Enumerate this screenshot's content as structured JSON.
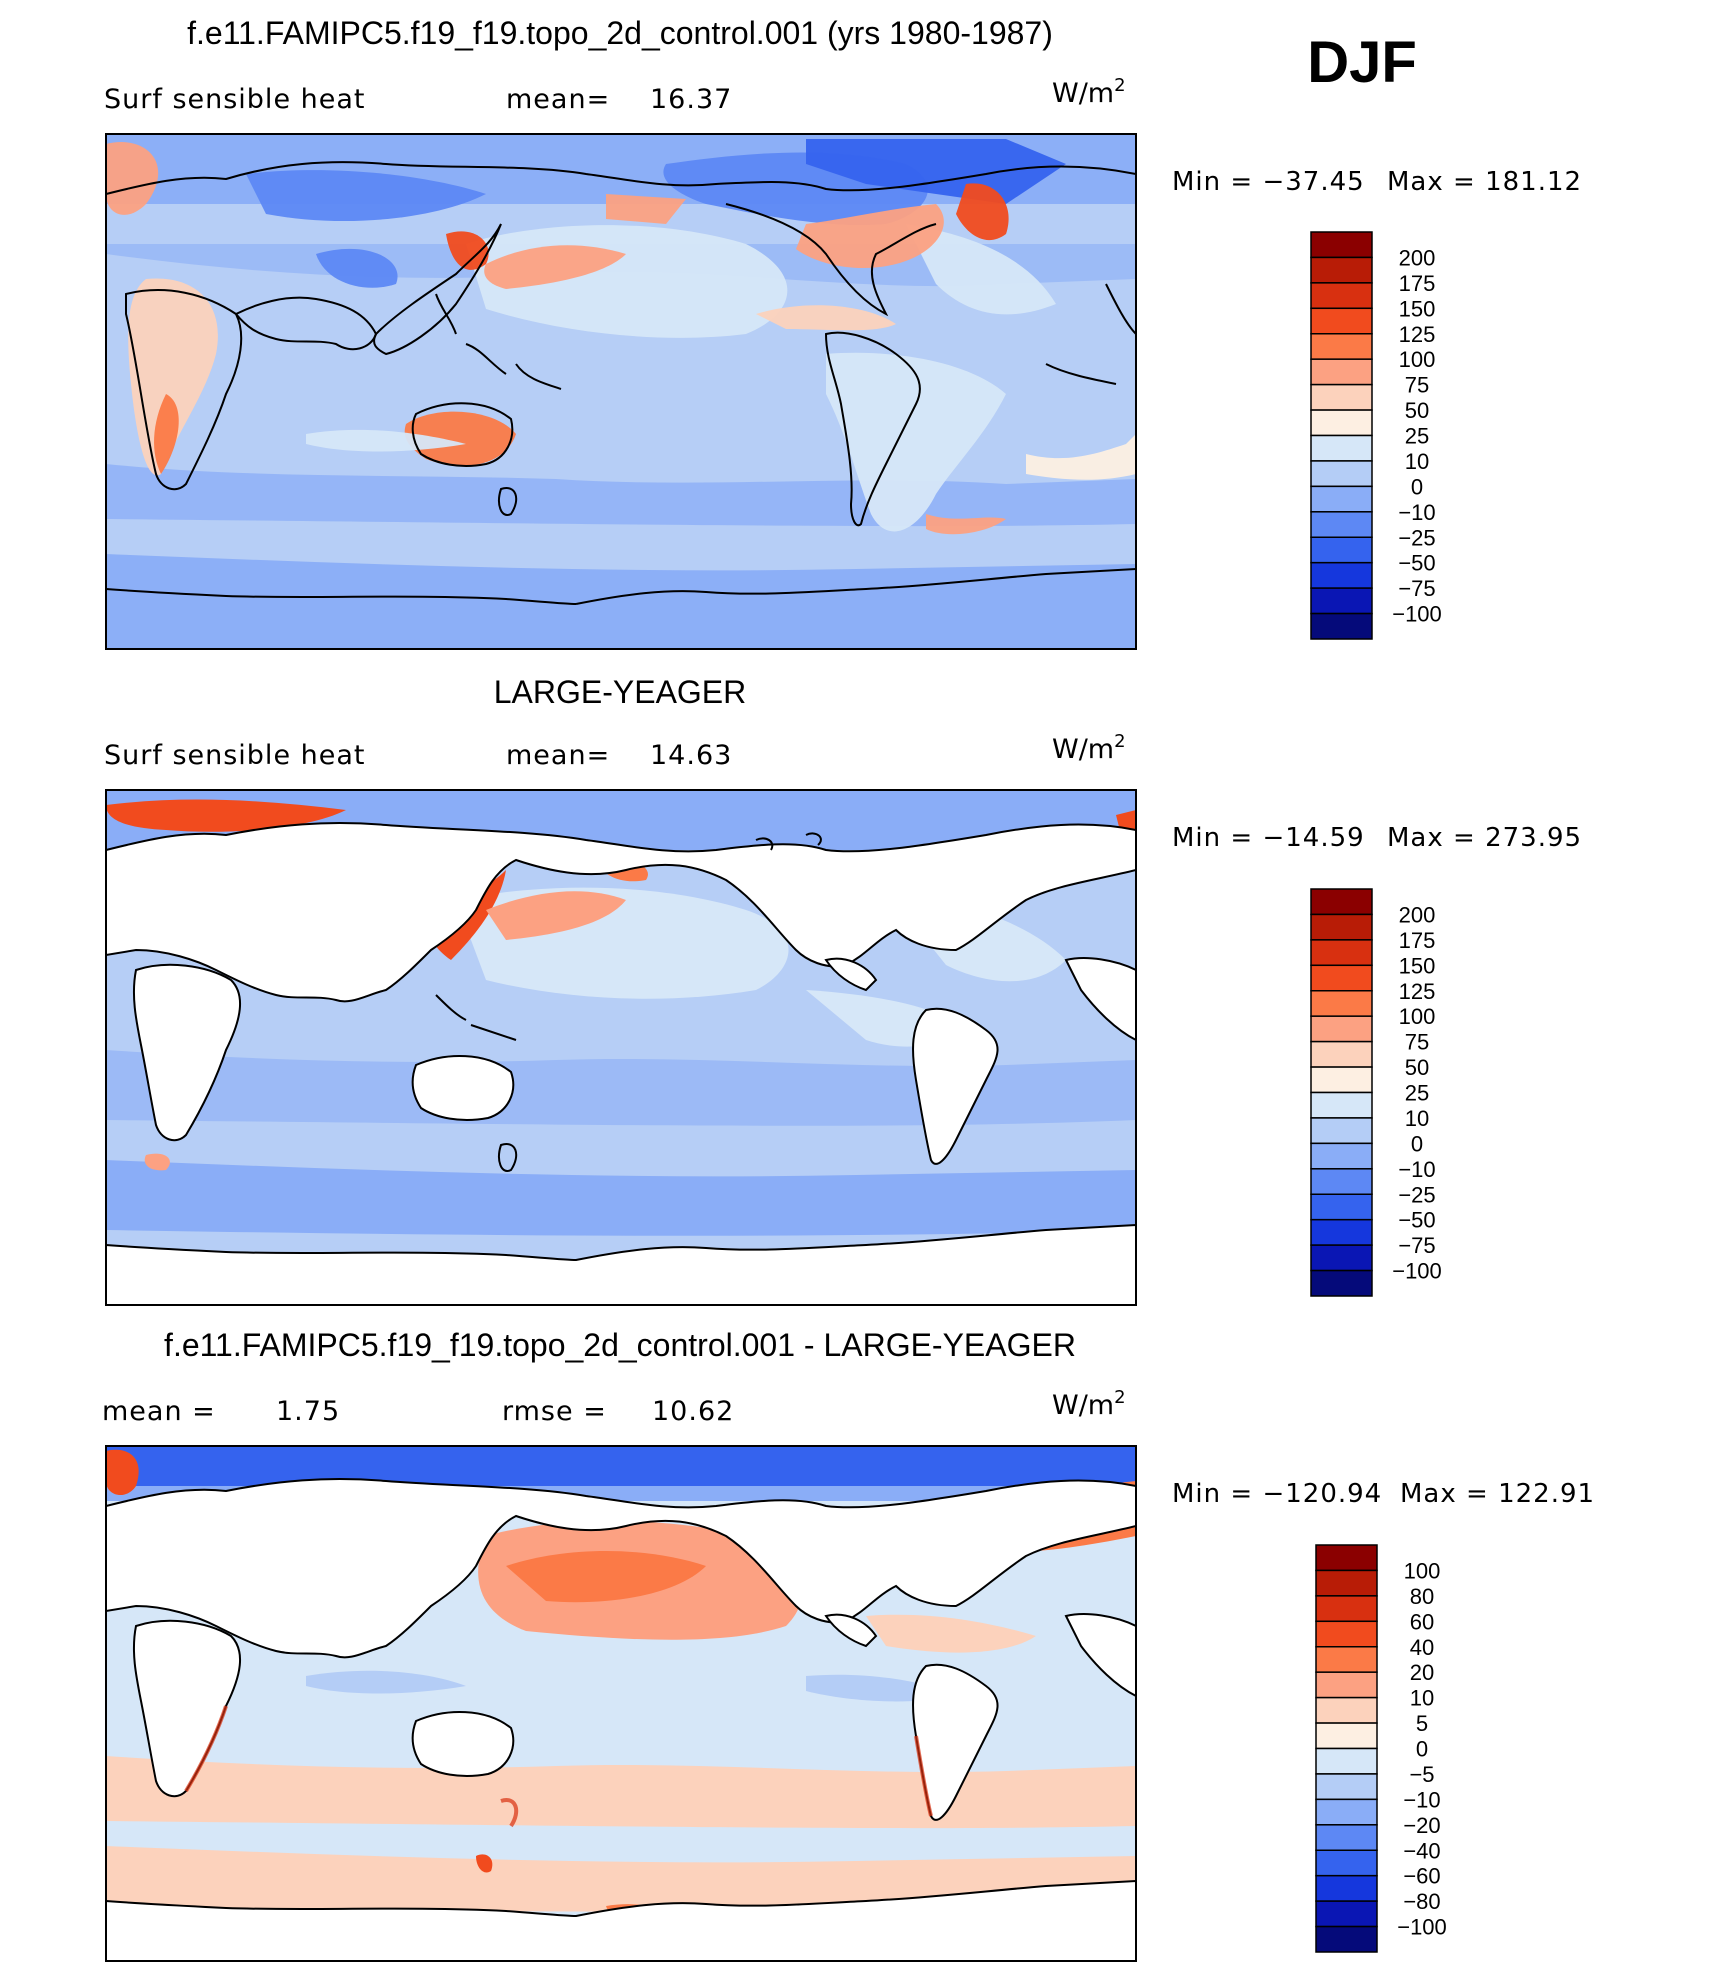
{
  "figure": {
    "season": "DJF"
  },
  "chart_data": [
    {
      "type": "heatmap",
      "title": "f.e11.FAMIPC5.f19_f19.topo_2d_control.001 (yrs 1980-1987)",
      "variable": "Surf sensible heat",
      "stat1_label": "mean=",
      "stat1_value": "16.37",
      "units": "W/m",
      "units_exp": "2",
      "min_label": "Min  =  −37.45",
      "max_label": "Max  =  181.12",
      "masked_land": false,
      "colorbar": {
        "levels": [
          "200",
          "175",
          "150",
          "125",
          "100",
          "75",
          "50",
          "25",
          "10",
          "0",
          "−10",
          "−25",
          "−50",
          "−75",
          "−100"
        ],
        "colors": [
          "#8b0000",
          "#b81c06",
          "#d83010",
          "#f14b1e",
          "#fb7a47",
          "#fca182",
          "#fcd2bc",
          "#fdefe2",
          "#d6e7f8",
          "#b4cdf6",
          "#8aadf7",
          "#5d88f4",
          "#3563ee",
          "#1537dd",
          "#0a16b4",
          "#050a7a"
        ]
      }
    },
    {
      "type": "heatmap",
      "title": "LARGE-YEAGER",
      "variable": "Surf sensible heat",
      "stat1_label": "mean=",
      "stat1_value": "14.63",
      "units": "W/m",
      "units_exp": "2",
      "min_label": "Min  =  −14.59",
      "max_label": "Max  =  273.95",
      "masked_land": true,
      "colorbar": {
        "levels": [
          "200",
          "175",
          "150",
          "125",
          "100",
          "75",
          "50",
          "25",
          "10",
          "0",
          "−10",
          "−25",
          "−50",
          "−75",
          "−100"
        ],
        "colors": [
          "#8b0000",
          "#b81c06",
          "#d83010",
          "#f14b1e",
          "#fb7a47",
          "#fca182",
          "#fcd2bc",
          "#fdefe2",
          "#d6e7f8",
          "#b4cdf6",
          "#8aadf7",
          "#5d88f4",
          "#3563ee",
          "#1537dd",
          "#0a16b4",
          "#050a7a"
        ]
      }
    },
    {
      "type": "heatmap",
      "title": "f.e11.FAMIPC5.f19_f19.topo_2d_control.001 - LARGE-YEAGER",
      "variable": "",
      "stat1_label": "mean =",
      "stat1_value": "1.75",
      "stat2_label": "rmse =",
      "stat2_value": "10.62",
      "units": "W/m",
      "units_exp": "2",
      "min_label": "Min  =  −120.94",
      "max_label": "Max  =  122.91",
      "masked_land": true,
      "colorbar": {
        "levels": [
          "100",
          "80",
          "60",
          "40",
          "20",
          "10",
          "5",
          "0",
          "−5",
          "−10",
          "−20",
          "−40",
          "−60",
          "−80",
          "−100"
        ],
        "colors": [
          "#8b0000",
          "#b81c06",
          "#d83010",
          "#f14b1e",
          "#fb7a47",
          "#fca182",
          "#fcd2bc",
          "#fdefe2",
          "#d6e7f8",
          "#b4cdf6",
          "#8aadf7",
          "#5d88f4",
          "#3563ee",
          "#1537dd",
          "#0a16b4",
          "#050a7a"
        ]
      }
    }
  ]
}
